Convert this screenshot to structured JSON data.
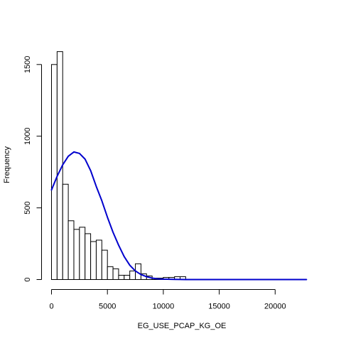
{
  "chart_data": {
    "type": "bar",
    "title": "",
    "xlabel": "EG_USE_PCAP_KG_OE",
    "ylabel": "Frequency",
    "xlim": [
      0,
      23000
    ],
    "ylim": [
      0,
      1600
    ],
    "bin_width": 500,
    "bins": [
      {
        "start": 0,
        "end": 500,
        "count": 1500
      },
      {
        "start": 500,
        "end": 1000,
        "count": 1590
      },
      {
        "start": 1000,
        "end": 1500,
        "count": 665
      },
      {
        "start": 1500,
        "end": 2000,
        "count": 410
      },
      {
        "start": 2000,
        "end": 2500,
        "count": 350
      },
      {
        "start": 2500,
        "end": 3000,
        "count": 365
      },
      {
        "start": 3000,
        "end": 3500,
        "count": 320
      },
      {
        "start": 3500,
        "end": 4000,
        "count": 265
      },
      {
        "start": 4000,
        "end": 4500,
        "count": 275
      },
      {
        "start": 4500,
        "end": 5000,
        "count": 205
      },
      {
        "start": 5000,
        "end": 5500,
        "count": 90
      },
      {
        "start": 5500,
        "end": 6000,
        "count": 75
      },
      {
        "start": 6000,
        "end": 6500,
        "count": 30
      },
      {
        "start": 6500,
        "end": 7000,
        "count": 30
      },
      {
        "start": 7000,
        "end": 7500,
        "count": 60
      },
      {
        "start": 7500,
        "end": 8000,
        "count": 110
      },
      {
        "start": 8000,
        "end": 8500,
        "count": 40
      },
      {
        "start": 8500,
        "end": 9000,
        "count": 25
      },
      {
        "start": 9000,
        "end": 9500,
        "count": 10
      },
      {
        "start": 9500,
        "end": 10000,
        "count": 10
      },
      {
        "start": 10000,
        "end": 10500,
        "count": 15
      },
      {
        "start": 10500,
        "end": 11000,
        "count": 15
      },
      {
        "start": 11000,
        "end": 11500,
        "count": 20
      },
      {
        "start": 11500,
        "end": 12000,
        "count": 20
      }
    ],
    "density_curve": {
      "color": "#0000CD",
      "x": [
        0,
        500,
        1000,
        1500,
        2000,
        2500,
        3000,
        3500,
        4000,
        4500,
        5000,
        5500,
        6000,
        6500,
        7000,
        7500,
        8000,
        8500,
        9000,
        9500,
        10000,
        11000,
        12000,
        14000,
        16000,
        18000,
        20000,
        22000,
        22800
      ],
      "y": [
        625,
        720,
        800,
        860,
        890,
        880,
        840,
        760,
        650,
        550,
        435,
        330,
        240,
        160,
        100,
        60,
        35,
        20,
        10,
        5,
        3,
        1,
        0,
        0,
        0,
        0,
        0,
        0,
        0
      ]
    },
    "x_ticks": [
      0,
      5000,
      10000,
      15000,
      20000
    ],
    "x_tick_labels": [
      "0",
      "5000",
      "10000",
      "15000",
      "20000"
    ],
    "y_ticks": [
      0,
      500,
      1000,
      1500
    ],
    "y_tick_labels": [
      "0",
      "500",
      "1000",
      "1500"
    ],
    "grid": false,
    "legend": "none"
  }
}
